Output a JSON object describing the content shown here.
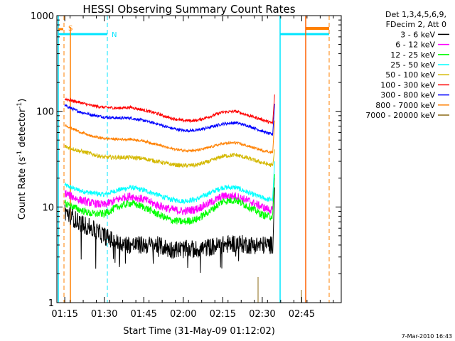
{
  "chart_data": {
    "type": "line",
    "title": "HESSI Observing Summary Count Rates",
    "xlabel": "Start Time (31-May-09 01:12:02)",
    "ylabel_main": "Count Rate (s",
    "ylabel_sup1": "-1",
    "ylabel_mid": " detector",
    "ylabel_sup2": "-1",
    "ylabel_end": ")",
    "y_scale": "log",
    "ylim": [
      1,
      1000
    ],
    "xlim_minutes": [
      72,
      180
    ],
    "x_ticks": [
      {
        "min": 75,
        "label": "01:15"
      },
      {
        "min": 90,
        "label": "01:30"
      },
      {
        "min": 105,
        "label": "01:45"
      },
      {
        "min": 120,
        "label": "02:00"
      },
      {
        "min": 135,
        "label": "02:15"
      },
      {
        "min": 150,
        "label": "02:30"
      },
      {
        "min": 165,
        "label": "02:45"
      }
    ],
    "y_ticks": [
      {
        "v": 1,
        "label": "1"
      },
      {
        "v": 10,
        "label": "10"
      },
      {
        "v": 100,
        "label": "100"
      },
      {
        "v": 1000,
        "label": "1000"
      }
    ],
    "legend_header": [
      "Det 1,3,4,5,6,9,",
      "FDecim 2, Att 0"
    ],
    "legend_placement": "right",
    "series": [
      {
        "name": "3 - 6 keV",
        "color": "#000000",
        "x": [
          75,
          80,
          85,
          90,
          95,
          100,
          105,
          110,
          115,
          120,
          125,
          130,
          135,
          140,
          145,
          150,
          152,
          154
        ],
        "y": [
          9,
          7,
          6,
          5,
          4.2,
          4.0,
          4.0,
          4.0,
          3.6,
          3.6,
          3.6,
          3.8,
          4.0,
          4.2,
          4.0,
          4.0,
          4.0,
          4.0
        ]
      },
      {
        "name": "6 - 12 keV",
        "color": "#ff00ff",
        "x": [
          75,
          80,
          85,
          90,
          95,
          100,
          105,
          110,
          115,
          120,
          125,
          130,
          135,
          140,
          145,
          150,
          152,
          154
        ],
        "y": [
          14,
          12,
          11,
          10.5,
          12,
          13,
          12,
          10.5,
          9.5,
          9,
          9.5,
          11,
          13,
          13,
          11.5,
          10,
          9.5,
          9.2
        ]
      },
      {
        "name": "12 - 25 keV",
        "color": "#00ff00",
        "x": [
          75,
          80,
          85,
          90,
          95,
          100,
          105,
          110,
          115,
          120,
          125,
          130,
          135,
          140,
          145,
          150,
          152,
          154
        ],
        "y": [
          11,
          9.5,
          8.5,
          8.5,
          10,
          11,
          10,
          8.5,
          7.3,
          7,
          7.4,
          9,
          11.5,
          11.8,
          10,
          8.3,
          8,
          8
        ]
      },
      {
        "name": "25 - 50 keV",
        "color": "#00ffff",
        "x": [
          75,
          80,
          85,
          90,
          95,
          100,
          105,
          110,
          115,
          120,
          125,
          130,
          135,
          140,
          145,
          150,
          152,
          154
        ],
        "y": [
          17,
          15,
          14,
          13.5,
          15,
          16,
          15,
          13.5,
          12,
          11.5,
          12,
          14,
          16,
          16,
          14,
          12.5,
          12,
          12
        ]
      },
      {
        "name": "50 - 100 keV",
        "color": "#d4b800",
        "x": [
          75,
          80,
          85,
          90,
          95,
          100,
          105,
          110,
          115,
          120,
          125,
          130,
          135,
          140,
          145,
          150,
          152,
          154
        ],
        "y": [
          43,
          39,
          36,
          33,
          33,
          33,
          32,
          30,
          28,
          27,
          27.5,
          30,
          34,
          35,
          32,
          29,
          28,
          27
        ]
      },
      {
        "name": "100 - 300 keV",
        "color": "#ff0000",
        "x": [
          75,
          80,
          85,
          90,
          95,
          100,
          105,
          110,
          115,
          120,
          125,
          130,
          135,
          140,
          145,
          150,
          152,
          154
        ],
        "y": [
          135,
          125,
          115,
          110,
          108,
          110,
          103,
          95,
          85,
          80,
          80,
          88,
          98,
          100,
          90,
          82,
          78,
          75
        ]
      },
      {
        "name": "300 - 800 keV",
        "color": "#0000ff",
        "x": [
          75,
          80,
          85,
          90,
          95,
          100,
          105,
          110,
          115,
          120,
          125,
          130,
          135,
          140,
          145,
          150,
          152,
          154
        ],
        "y": [
          115,
          100,
          92,
          87,
          85,
          85,
          80,
          74,
          67,
          63,
          63,
          68,
          74,
          76,
          70,
          62,
          59,
          57
        ]
      },
      {
        "name": "800 - 7000 keV",
        "color": "#ff8000",
        "x": [
          75,
          80,
          85,
          90,
          95,
          100,
          105,
          110,
          115,
          120,
          125,
          130,
          135,
          140,
          145,
          150,
          152,
          154
        ],
        "y": [
          72,
          62,
          55,
          52,
          51,
          51,
          49,
          45,
          41,
          39,
          39,
          42,
          46,
          47,
          43,
          39,
          38,
          37
        ]
      },
      {
        "name": "7000 - 20000 keV",
        "color": "#8b6914",
        "x": [],
        "y": []
      }
    ],
    "markers": [
      {
        "label": "S",
        "color": "#ff8000"
      },
      {
        "label": "N",
        "color": "#00e5ff"
      }
    ],
    "footer_date": "7-Mar-2010 16:43"
  }
}
